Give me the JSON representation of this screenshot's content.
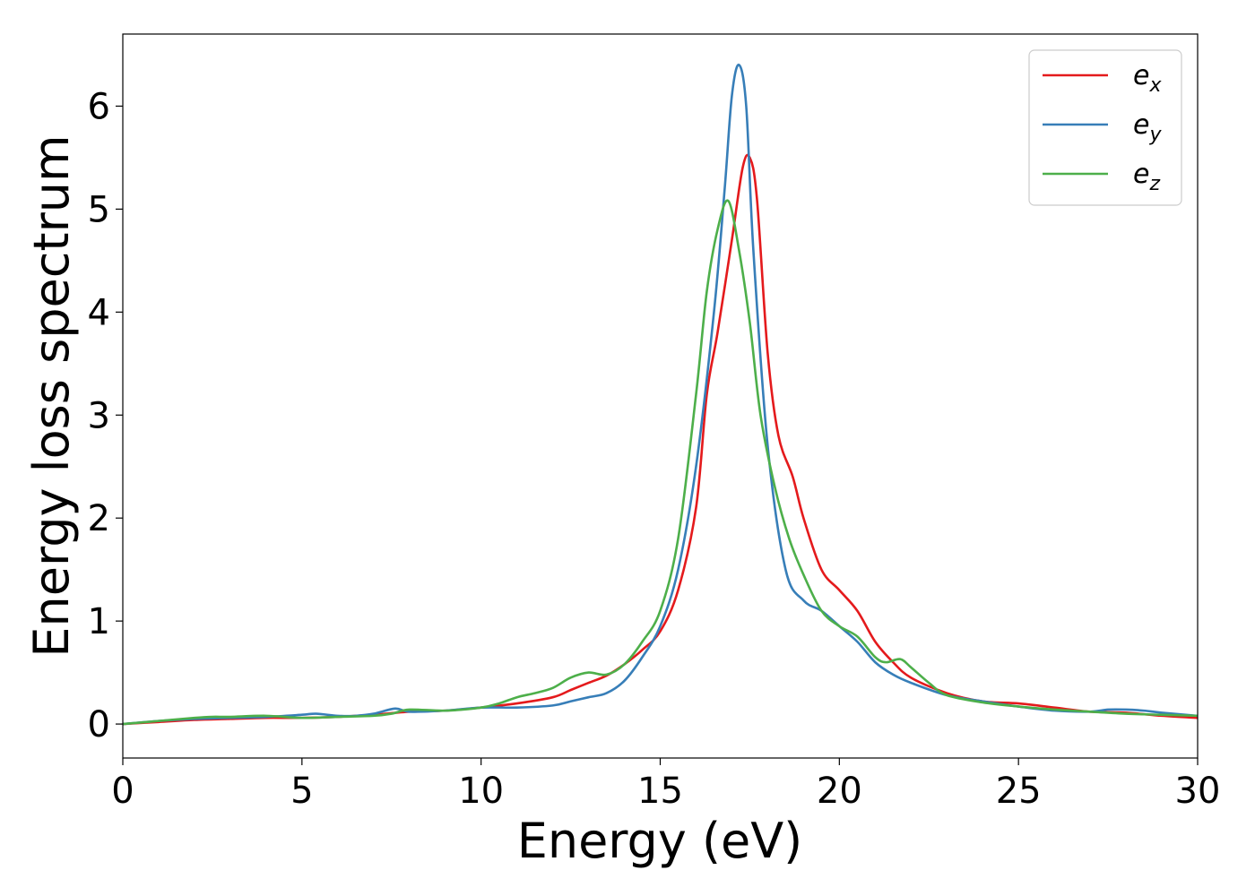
{
  "chart_data": {
    "type": "line",
    "xlabel": "Energy (eV)",
    "ylabel": "Energy loss spectrum",
    "xlim": [
      0,
      30
    ],
    "ylim": [
      -0.33,
      6.7
    ],
    "xticks": [
      0,
      5,
      10,
      15,
      20,
      25,
      30
    ],
    "yticks": [
      0,
      1,
      2,
      3,
      4,
      5,
      6
    ],
    "grid": false,
    "legend_position": "top-right",
    "series": [
      {
        "name": "e_x",
        "label_base": "e",
        "label_sub": "x",
        "color": "#e41a1c",
        "x": [
          0,
          1,
          2,
          3,
          4,
          5,
          6,
          7,
          8,
          9,
          10,
          11,
          12,
          12.5,
          13,
          13.5,
          14,
          14.5,
          15,
          15.5,
          16,
          16.3,
          16.6,
          17,
          17.3,
          17.5,
          17.7,
          18,
          18.3,
          18.7,
          19,
          19.5,
          20,
          20.5,
          21,
          21.5,
          22,
          23,
          24,
          25,
          26,
          27,
          28,
          29,
          30
        ],
        "y": [
          0,
          0.02,
          0.04,
          0.05,
          0.06,
          0.06,
          0.07,
          0.09,
          0.12,
          0.13,
          0.16,
          0.2,
          0.26,
          0.33,
          0.4,
          0.47,
          0.58,
          0.72,
          0.9,
          1.3,
          2.1,
          3.2,
          3.8,
          4.7,
          5.4,
          5.5,
          5.1,
          3.6,
          2.8,
          2.4,
          2.0,
          1.5,
          1.3,
          1.1,
          0.8,
          0.6,
          0.45,
          0.3,
          0.22,
          0.2,
          0.16,
          0.12,
          0.11,
          0.08,
          0.06
        ]
      },
      {
        "name": "e_y",
        "label_base": "e",
        "label_sub": "y",
        "color": "#377eb8",
        "x": [
          0,
          1,
          2,
          3,
          4,
          5,
          5.4,
          6,
          6.5,
          7,
          7.6,
          8,
          9,
          10,
          11,
          12,
          12.5,
          13,
          13.5,
          14,
          14.5,
          15,
          15.5,
          16,
          16.5,
          16.8,
          17,
          17.2,
          17.4,
          17.6,
          18,
          18.5,
          19,
          19.5,
          20,
          20.5,
          21,
          21.5,
          22,
          23,
          24,
          25,
          26,
          27,
          27.5,
          28,
          28.5,
          29,
          30
        ],
        "y": [
          0,
          0.03,
          0.05,
          0.06,
          0.07,
          0.09,
          0.1,
          0.08,
          0.08,
          0.1,
          0.15,
          0.12,
          0.13,
          0.16,
          0.16,
          0.18,
          0.22,
          0.26,
          0.3,
          0.42,
          0.65,
          0.95,
          1.5,
          2.5,
          4.0,
          5.2,
          6.1,
          6.4,
          6.0,
          4.6,
          2.7,
          1.5,
          1.2,
          1.1,
          0.95,
          0.8,
          0.6,
          0.48,
          0.4,
          0.28,
          0.22,
          0.17,
          0.13,
          0.12,
          0.14,
          0.14,
          0.13,
          0.11,
          0.08
        ]
      },
      {
        "name": "e_z",
        "label_base": "e",
        "label_sub": "z",
        "color": "#4daf4a",
        "x": [
          0,
          1,
          2,
          2.5,
          3,
          4,
          5,
          6,
          7,
          7.5,
          8,
          9,
          10,
          10.5,
          11,
          11.5,
          12,
          12.5,
          13,
          13.5,
          14,
          14.5,
          15,
          15.5,
          16,
          16.3,
          16.6,
          16.9,
          17.2,
          17.5,
          17.8,
          18.2,
          18.6,
          19,
          19.5,
          20,
          20.5,
          21,
          21.3,
          21.7,
          22,
          22.5,
          23,
          24,
          25,
          26,
          27,
          28,
          29,
          30
        ],
        "y": [
          0,
          0.03,
          0.06,
          0.07,
          0.07,
          0.08,
          0.06,
          0.07,
          0.08,
          0.1,
          0.14,
          0.13,
          0.16,
          0.2,
          0.26,
          0.3,
          0.35,
          0.45,
          0.5,
          0.48,
          0.58,
          0.8,
          1.1,
          1.8,
          3.2,
          4.2,
          4.8,
          5.08,
          4.6,
          3.9,
          3.0,
          2.3,
          1.8,
          1.45,
          1.1,
          0.95,
          0.85,
          0.65,
          0.6,
          0.63,
          0.55,
          0.4,
          0.28,
          0.21,
          0.17,
          0.14,
          0.12,
          0.1,
          0.09,
          0.08
        ]
      }
    ]
  }
}
